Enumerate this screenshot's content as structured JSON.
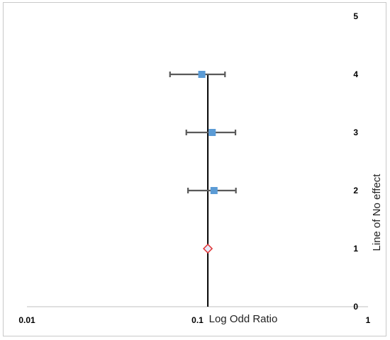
{
  "chart_data": {
    "type": "scatter",
    "title": "",
    "xlabel": "Log Odd Ratio",
    "ylabel": "Line of No effect",
    "xscale": "log",
    "xlim": [
      0.01,
      1
    ],
    "ylim": [
      0,
      5
    ],
    "x_ticks": [
      0.01,
      0.1,
      1
    ],
    "x_tick_labels": [
      "0.01",
      "0.1",
      "1"
    ],
    "y_ticks": [
      0,
      1,
      2,
      3,
      4,
      5
    ],
    "y_tick_labels": [
      "0",
      "1",
      "2",
      "3",
      "4",
      "5"
    ],
    "y_axis_side": "right",
    "grid": false,
    "legend": "none",
    "reference_line": {
      "x": 0.115,
      "label": "Line of No effect"
    },
    "series": [
      {
        "marker": "square",
        "color": "#5b9bd5",
        "points": [
          {
            "y": 4,
            "x": 0.106,
            "ci_low": 0.069,
            "ci_high": 0.145
          },
          {
            "y": 3,
            "x": 0.122,
            "ci_low": 0.086,
            "ci_high": 0.167
          },
          {
            "y": 2,
            "x": 0.125,
            "ci_low": 0.088,
            "ci_high": 0.168
          }
        ]
      },
      {
        "marker": "diamond",
        "color": "#e8e8f8",
        "stroke": "#e03030",
        "points": [
          {
            "y": 1,
            "x": 0.115
          }
        ]
      }
    ]
  }
}
